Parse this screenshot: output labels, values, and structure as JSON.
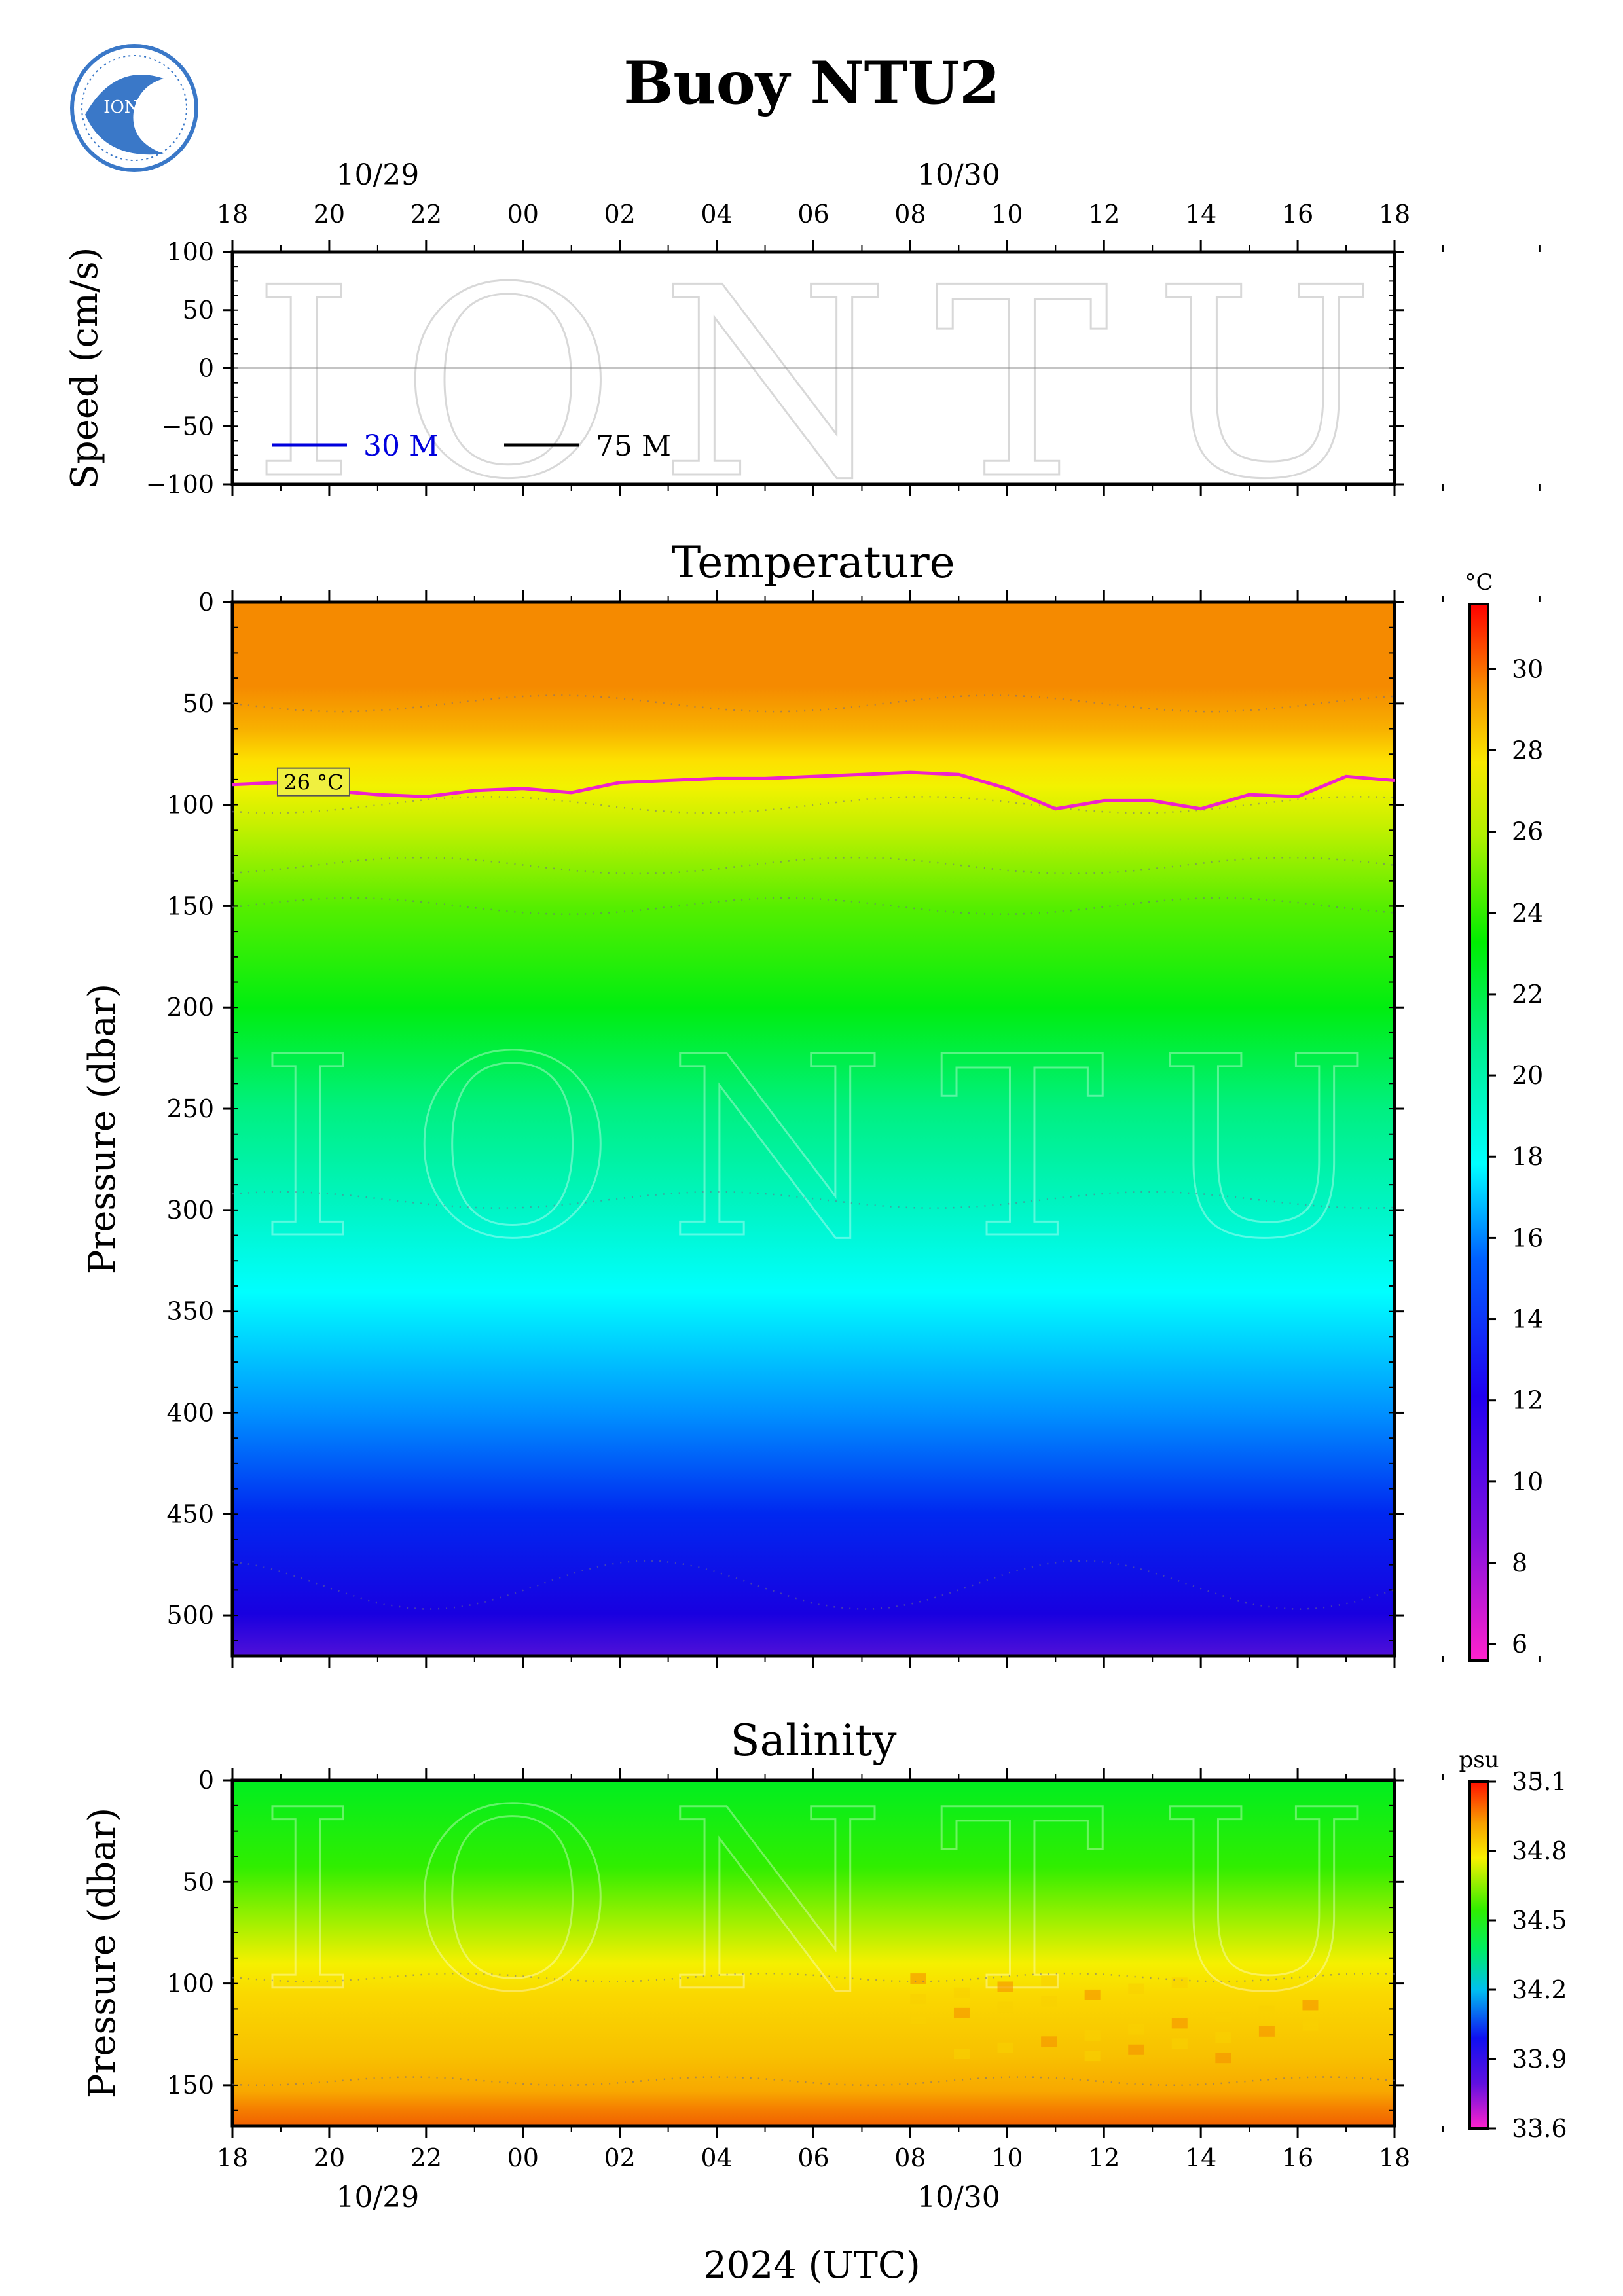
{
  "page": {
    "title": "Buoy NTU2",
    "logo_text": "IONTU",
    "watermark": "IONTU",
    "xlabel": "2024 (UTC)"
  },
  "time_axis": {
    "hour_ticks": [
      "18",
      "20",
      "22",
      "00",
      "02",
      "04",
      "06",
      "08",
      "10",
      "12",
      "14",
      "16",
      "18"
    ],
    "minor_ticks_per_interval": 2,
    "date_labels": [
      {
        "label": "10/29",
        "at_hour_index": 1.5
      },
      {
        "label": "10/30",
        "at_hour_index": 7.5
      }
    ]
  },
  "chart_data": [
    {
      "type": "line",
      "name": "speed",
      "ylabel": "Speed (cm/s)",
      "ylim": [
        -100,
        100
      ],
      "yticks": [
        100,
        50,
        0,
        -50,
        -100
      ],
      "zero_line": true,
      "legend": [
        {
          "label": "30 M",
          "color": "#0000dd"
        },
        {
          "label": "75 M",
          "color": "#000000"
        }
      ],
      "legend_position": "bottom-left",
      "series": [
        {
          "name": "30 M",
          "values": []
        },
        {
          "name": "75 M",
          "values": []
        }
      ]
    },
    {
      "type": "heatmap",
      "name": "temperature",
      "title": "Temperature",
      "ylabel": "Pressure (dbar)",
      "ylim": [
        520,
        0
      ],
      "yticks": [
        0,
        50,
        100,
        150,
        200,
        250,
        300,
        350,
        400,
        450,
        500
      ],
      "colorbar": {
        "unit": "°C",
        "range": [
          5.6,
          31.6
        ],
        "ticks": [
          30,
          28,
          26,
          24,
          22,
          20,
          18,
          16,
          14,
          12,
          10,
          8,
          6
        ]
      },
      "depth_profile": [
        {
          "p": 0,
          "t": 28.6
        },
        {
          "p": 40,
          "t": 28.6
        },
        {
          "p": 60,
          "t": 27.6
        },
        {
          "p": 75,
          "t": 26.8
        },
        {
          "p": 90,
          "t": 26.0
        },
        {
          "p": 110,
          "t": 24.8
        },
        {
          "p": 150,
          "t": 23.0
        },
        {
          "p": 200,
          "t": 21.3
        },
        {
          "p": 250,
          "t": 19.2
        },
        {
          "p": 300,
          "t": 17.4
        },
        {
          "p": 340,
          "t": 15.9
        },
        {
          "p": 400,
          "t": 12.8
        },
        {
          "p": 450,
          "t": 10.8
        },
        {
          "p": 500,
          "t": 9.6
        },
        {
          "p": 520,
          "t": 8.8
        }
      ],
      "isotherm": {
        "label": "26 °C",
        "color": "#ee22cc",
        "hours": [
          0,
          1,
          2,
          3,
          4,
          5,
          6,
          7,
          8,
          9,
          10,
          11,
          12,
          13,
          14,
          15,
          16,
          17,
          18,
          19,
          20,
          21,
          22,
          23,
          24
        ],
        "pressure": [
          90,
          89,
          93,
          95,
          96,
          93,
          92,
          94,
          89,
          88,
          87,
          87,
          86,
          85,
          84,
          85,
          92,
          102,
          98,
          98,
          102,
          95,
          96,
          86,
          88
        ]
      }
    },
    {
      "type": "heatmap",
      "name": "salinity",
      "title": "Salinity",
      "ylabel": "Pressure (dbar)",
      "ylim": [
        170,
        0
      ],
      "yticks": [
        0,
        50,
        100,
        150
      ],
      "colorbar": {
        "unit": "psu",
        "range": [
          33.6,
          35.1
        ],
        "ticks": [
          35.1,
          34.8,
          34.5,
          34.2,
          33.9,
          33.6
        ]
      },
      "depth_profile": [
        {
          "p": 0,
          "s": 34.55
        },
        {
          "p": 50,
          "s": 34.58
        },
        {
          "p": 80,
          "s": 34.65
        },
        {
          "p": 95,
          "s": 34.75
        },
        {
          "p": 120,
          "s": 34.82
        },
        {
          "p": 150,
          "s": 34.86
        },
        {
          "p": 160,
          "s": 34.93
        },
        {
          "p": 170,
          "s": 34.98
        }
      ]
    }
  ]
}
